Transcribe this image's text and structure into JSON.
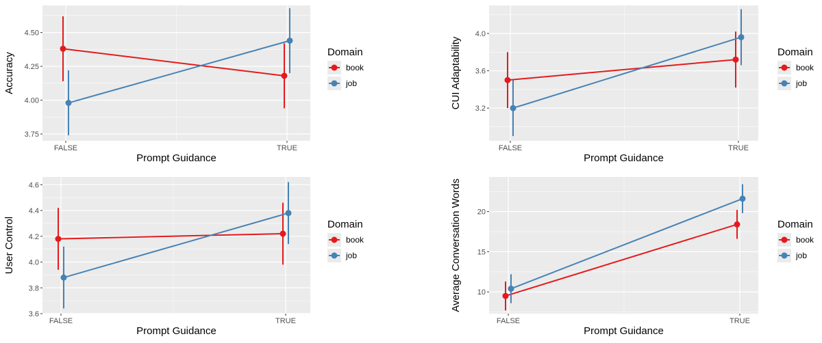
{
  "colors": {
    "panel_bg": "#EBEBEB",
    "grid": "#FFFFFF",
    "book": "#E41A1C",
    "job": "#4682B4"
  },
  "chart_data": [
    {
      "type": "line",
      "xlabel": "Prompt Guidance",
      "ylabel": "Accuracy",
      "categories": [
        "FALSE",
        "TRUE"
      ],
      "ylim": [
        3.7,
        4.7
      ],
      "yticks": [
        3.75,
        4.0,
        4.25,
        4.5
      ],
      "ytick_labels": [
        "3.75",
        "4.00",
        "4.25",
        "4.50"
      ],
      "legend_title": "Domain",
      "legend_position": "right",
      "series": [
        {
          "name": "book",
          "color": "#E41A1C",
          "values": [
            4.38,
            4.18
          ],
          "lower": [
            4.14,
            3.94
          ],
          "upper": [
            4.62,
            4.42
          ]
        },
        {
          "name": "job",
          "color": "#4682B4",
          "values": [
            3.98,
            4.44
          ],
          "lower": [
            3.74,
            4.2
          ],
          "upper": [
            4.22,
            4.68
          ]
        }
      ]
    },
    {
      "type": "line",
      "xlabel": "Prompt Guidance",
      "ylabel": "CUI Adaptability",
      "categories": [
        "FALSE",
        "TRUE"
      ],
      "ylim": [
        2.85,
        4.3
      ],
      "yticks": [
        3.2,
        3.6,
        4.0
      ],
      "ytick_labels": [
        "3.2",
        "3.6",
        "4.0"
      ],
      "legend_title": "Domain",
      "legend_position": "right",
      "series": [
        {
          "name": "book",
          "color": "#E41A1C",
          "values": [
            3.5,
            3.72
          ],
          "lower": [
            3.2,
            3.42
          ],
          "upper": [
            3.8,
            4.02
          ]
        },
        {
          "name": "job",
          "color": "#4682B4",
          "values": [
            3.2,
            3.96
          ],
          "lower": [
            2.9,
            3.66
          ],
          "upper": [
            3.5,
            4.26
          ]
        }
      ]
    },
    {
      "type": "line",
      "xlabel": "Prompt Guidance",
      "ylabel": "User Control",
      "categories": [
        "FALSE",
        "TRUE"
      ],
      "ylim": [
        3.6,
        4.66
      ],
      "yticks": [
        3.6,
        3.8,
        4.0,
        4.2,
        4.4,
        4.6
      ],
      "ytick_labels": [
        "3.6",
        "3.8",
        "4.0",
        "4.2",
        "4.4",
        "4.6"
      ],
      "legend_title": "Domain",
      "legend_position": "right",
      "series": [
        {
          "name": "book",
          "color": "#E41A1C",
          "values": [
            4.18,
            4.22
          ],
          "lower": [
            3.94,
            3.98
          ],
          "upper": [
            4.42,
            4.46
          ]
        },
        {
          "name": "job",
          "color": "#4682B4",
          "values": [
            3.88,
            4.38
          ],
          "lower": [
            3.64,
            4.14
          ],
          "upper": [
            4.12,
            4.62
          ]
        }
      ]
    },
    {
      "type": "line",
      "xlabel": "Prompt Guidance",
      "ylabel": "Average Conversation Words",
      "categories": [
        "FALSE",
        "TRUE"
      ],
      "ylim": [
        7.3,
        24.3
      ],
      "yticks": [
        10,
        15,
        20
      ],
      "ytick_labels": [
        "10",
        "15",
        "20"
      ],
      "legend_title": "Domain",
      "legend_position": "right",
      "series": [
        {
          "name": "book",
          "color": "#E41A1C",
          "values": [
            9.5,
            18.4
          ],
          "lower": [
            7.7,
            16.6
          ],
          "upper": [
            11.3,
            20.2
          ]
        },
        {
          "name": "job",
          "color": "#4682B4",
          "values": [
            10.4,
            21.6
          ],
          "lower": [
            8.6,
            19.8
          ],
          "upper": [
            12.2,
            23.4
          ]
        }
      ]
    }
  ]
}
